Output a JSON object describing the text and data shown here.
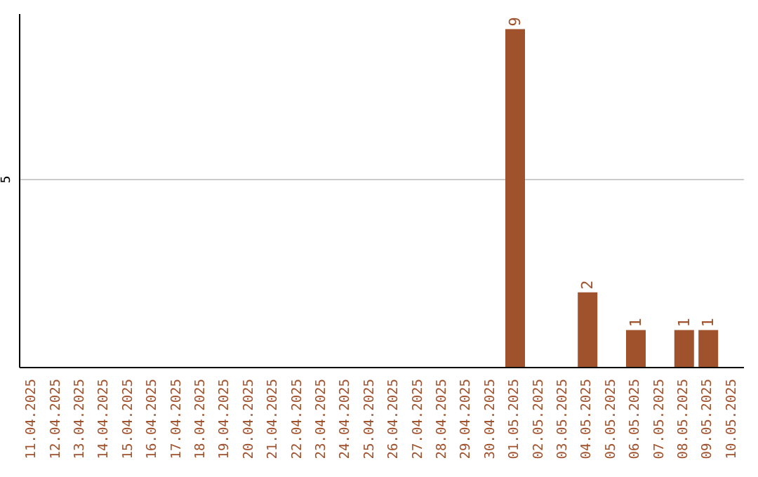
{
  "chart_data": {
    "type": "bar",
    "categories": [
      "11.04.2025",
      "12.04.2025",
      "13.04.2025",
      "14.04.2025",
      "15.04.2025",
      "16.04.2025",
      "17.04.2025",
      "18.04.2025",
      "19.04.2025",
      "20.04.2025",
      "21.04.2025",
      "22.04.2025",
      "23.04.2025",
      "24.04.2025",
      "25.04.2025",
      "26.04.2025",
      "27.04.2025",
      "28.04.2025",
      "29.04.2025",
      "30.04.2025",
      "01.05.2025",
      "02.05.2025",
      "03.05.2025",
      "04.05.2025",
      "05.05.2025",
      "06.05.2025",
      "07.05.2025",
      "08.05.2025",
      "09.05.2025",
      "10.05.2025"
    ],
    "values": [
      null,
      null,
      null,
      null,
      null,
      null,
      null,
      null,
      null,
      null,
      null,
      null,
      null,
      null,
      null,
      null,
      null,
      null,
      null,
      null,
      9,
      null,
      null,
      2,
      null,
      1,
      null,
      1,
      1,
      null
    ],
    "color": "#a0522d",
    "ylim": [
      0,
      9.4
    ],
    "yticks": [
      5
    ],
    "grid": "y",
    "data_labels": true
  }
}
